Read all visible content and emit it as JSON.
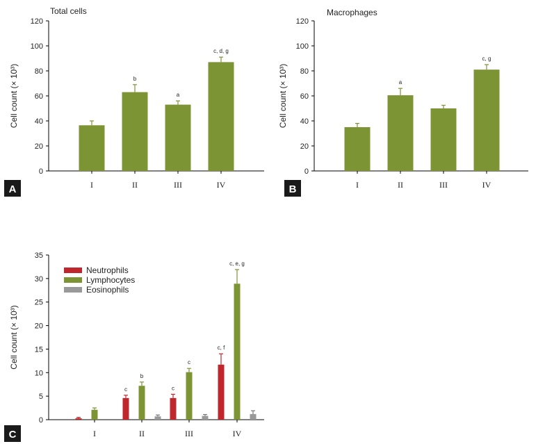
{
  "chart_data": [
    {
      "panel": "A",
      "type": "bar",
      "title": "Total cells",
      "ylabel": "Cell count (× 10³)",
      "categories": [
        "I",
        "II",
        "III",
        "IV"
      ],
      "ylim": [
        0,
        120
      ],
      "yticks": [
        0,
        20,
        40,
        60,
        80,
        100,
        120
      ],
      "series": [
        {
          "values": [
            36.5,
            63,
            53,
            87
          ],
          "errors": [
            3.5,
            6,
            3,
            4
          ],
          "labels": [
            "",
            "b",
            "a",
            "c, d, g"
          ],
          "color": "#7d9434"
        }
      ]
    },
    {
      "panel": "B",
      "type": "bar",
      "title": "Macrophages",
      "ylabel": "Cell count (× 10³)",
      "categories": [
        "I",
        "II",
        "III",
        "IV"
      ],
      "ylim": [
        0,
        120
      ],
      "yticks": [
        0,
        20,
        40,
        60,
        80,
        100,
        120
      ],
      "series": [
        {
          "values": [
            35,
            60.5,
            50,
            81
          ],
          "errors": [
            3,
            5.5,
            2.5,
            4
          ],
          "labels": [
            "",
            "a",
            "",
            "c, g"
          ],
          "color": "#7d9434"
        }
      ]
    },
    {
      "panel": "C",
      "type": "bar",
      "title": "",
      "ylabel": "Cell count (× 10³)",
      "categories": [
        "I",
        "II",
        "III",
        "IV"
      ],
      "ylim": [
        0,
        35
      ],
      "yticks": [
        0,
        5,
        10,
        15,
        20,
        25,
        30,
        35
      ],
      "legend_position": "top-left",
      "series": [
        {
          "name": "Neutrophils",
          "values": [
            0.3,
            4.6,
            4.6,
            11.7
          ],
          "errors": [
            0.2,
            0.6,
            0.8,
            2.3
          ],
          "labels": [
            "",
            "c",
            "c",
            "c, f"
          ],
          "color": "#c0272d"
        },
        {
          "name": "Lymphocytes",
          "values": [
            2.1,
            7.2,
            10.1,
            28.9
          ],
          "errors": [
            0.4,
            0.8,
            0.8,
            3.0
          ],
          "labels": [
            "",
            "b",
            "c",
            "c, e, g"
          ],
          "color": "#7d9434"
        },
        {
          "name": "Eosinophils",
          "values": [
            0,
            0.7,
            0.8,
            1.2
          ],
          "errors": [
            0,
            0.3,
            0.3,
            0.7
          ],
          "labels": [
            "",
            "",
            "",
            ""
          ],
          "color": "#999999"
        }
      ]
    }
  ]
}
